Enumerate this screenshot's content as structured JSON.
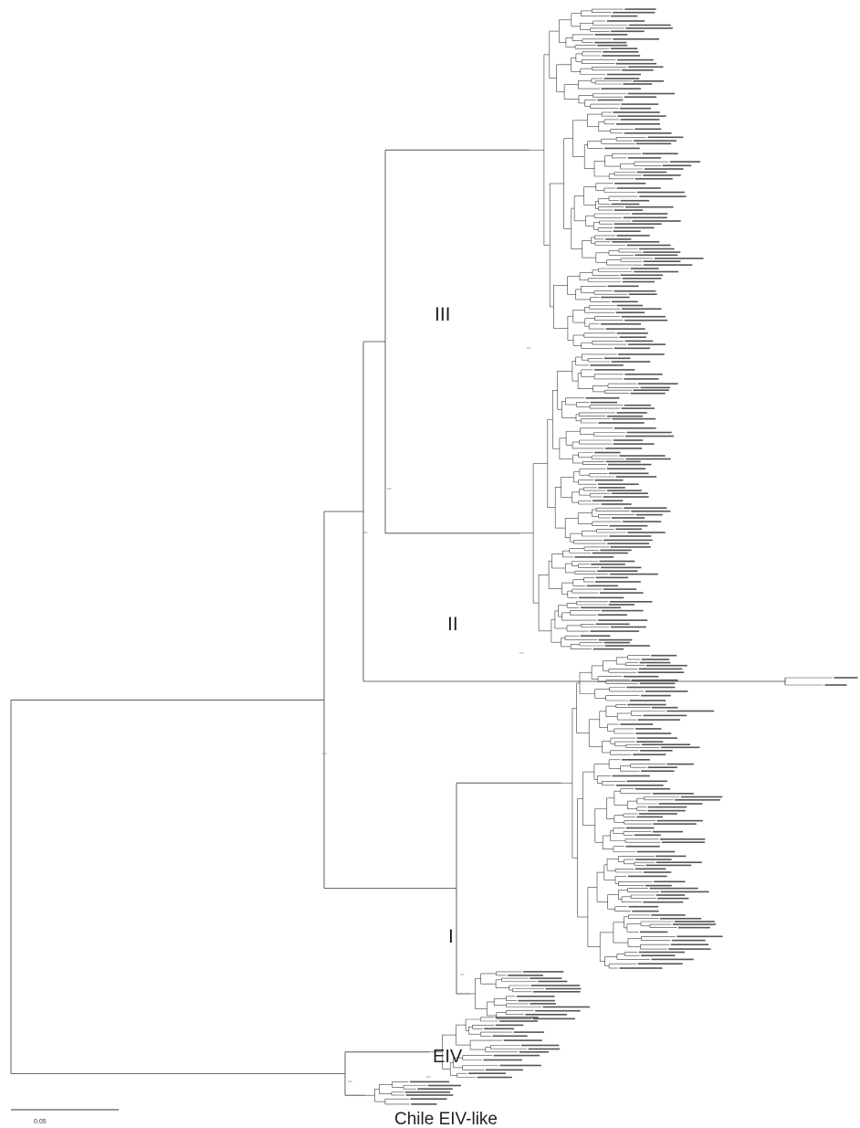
{
  "clades": [
    {
      "label": "III"
    },
    {
      "label": "II"
    },
    {
      "label": "I"
    },
    {
      "label": "EIV"
    },
    {
      "label": "Chile EIV-like"
    }
  ],
  "scale_bar": {
    "label": "0.05"
  },
  "support_values": [
    {
      "label": "100"
    },
    {
      "label": "100"
    },
    {
      "label": "100"
    },
    {
      "label": "100"
    },
    {
      "label": "100"
    },
    {
      "label": "100"
    },
    {
      "label": "100"
    },
    {
      "label": "100"
    }
  ]
}
